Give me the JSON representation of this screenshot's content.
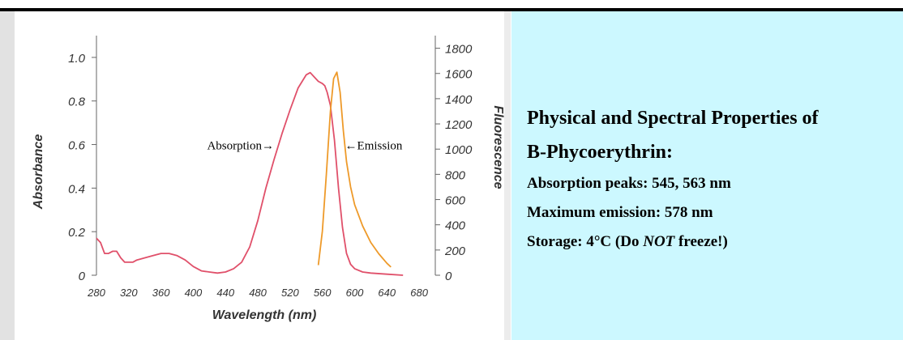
{
  "chart_data": {
    "type": "line",
    "xlabel": "Wavelength (nm)",
    "ylabel": "Absorbance",
    "y2label": "Fluorescence",
    "xlim": [
      280,
      700
    ],
    "ylim": [
      0,
      1.1
    ],
    "y2lim": [
      0,
      1900
    ],
    "x_ticks": [
      280,
      320,
      360,
      400,
      440,
      480,
      520,
      560,
      600,
      640,
      680
    ],
    "y_ticks": [
      {
        "value": 0,
        "label": "0"
      },
      {
        "value": 0.2,
        "label": "0.2"
      },
      {
        "value": 0.4,
        "label": "0.4"
      },
      {
        "value": 0.6,
        "label": "0.6"
      },
      {
        "value": 0.8,
        "label": "0.8"
      },
      {
        "value": 1.0,
        "label": "1.0"
      }
    ],
    "y2_ticks": [
      {
        "value": 0,
        "label": "0"
      },
      {
        "value": 200,
        "label": "200"
      },
      {
        "value": 400,
        "label": "400"
      },
      {
        "value": 600,
        "label": "600"
      },
      {
        "value": 800,
        "label": "800"
      },
      {
        "value": 1000,
        "label": "1000"
      },
      {
        "value": 1200,
        "label": "1200"
      },
      {
        "value": 1400,
        "label": "1400"
      },
      {
        "value": 1600,
        "label": "1600"
      },
      {
        "value": 1800,
        "label": "1800"
      }
    ],
    "series": [
      {
        "name": "Absorption",
        "axis": "left",
        "color": "#e0506a",
        "x": [
          280,
          285,
          290,
          295,
          300,
          305,
          310,
          315,
          320,
          325,
          330,
          340,
          350,
          360,
          370,
          380,
          390,
          400,
          410,
          420,
          430,
          440,
          450,
          460,
          470,
          480,
          490,
          500,
          510,
          520,
          530,
          540,
          545,
          550,
          555,
          560,
          563,
          566,
          570,
          575,
          580,
          585,
          590,
          595,
          600,
          610,
          620,
          640,
          660
        ],
        "y": [
          0.17,
          0.15,
          0.1,
          0.1,
          0.11,
          0.11,
          0.08,
          0.06,
          0.06,
          0.06,
          0.07,
          0.08,
          0.09,
          0.1,
          0.1,
          0.09,
          0.07,
          0.04,
          0.02,
          0.015,
          0.01,
          0.015,
          0.03,
          0.06,
          0.13,
          0.25,
          0.4,
          0.53,
          0.65,
          0.76,
          0.86,
          0.92,
          0.93,
          0.91,
          0.89,
          0.88,
          0.87,
          0.84,
          0.78,
          0.62,
          0.4,
          0.22,
          0.1,
          0.05,
          0.03,
          0.015,
          0.01,
          0.005,
          0.0
        ]
      },
      {
        "name": "Emission",
        "axis": "right",
        "color": "#ee9a2a",
        "x": [
          555,
          560,
          565,
          570,
          574,
          578,
          582,
          586,
          590,
          595,
          600,
          610,
          620,
          630,
          640,
          645
        ],
        "y": [
          80,
          350,
          800,
          1300,
          1560,
          1610,
          1450,
          1150,
          900,
          700,
          560,
          390,
          260,
          170,
          95,
          65
        ]
      }
    ],
    "annotations": [
      {
        "text": "Absorption→",
        "x": 500,
        "y": 0.6
      },
      {
        "text": "←Emission",
        "x": 588,
        "y": 0.6
      }
    ]
  },
  "info": {
    "title_line1": "Physical and Spectral Properties of",
    "title_line2": "B-Phycoerythrin:",
    "absorption": "Absorption peaks:  545, 563 nm",
    "emission": "Maximum emission:  578 nm",
    "storage_prefix": "Storage: 4°C (Do ",
    "storage_em": "NOT",
    "storage_suffix": " freeze!)"
  }
}
